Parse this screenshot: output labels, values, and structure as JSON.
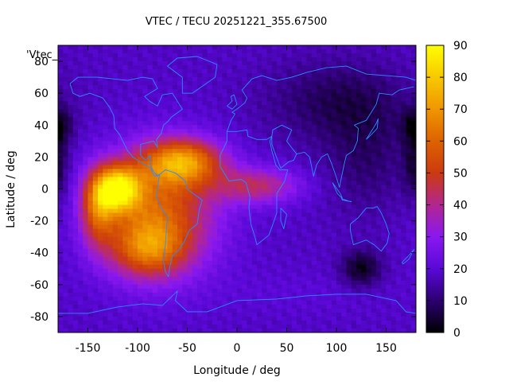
{
  "chart_data": {
    "type": "heatmap",
    "title": "VTEC / TECU 20251221_355.67500",
    "xlabel": "Longitude / deg",
    "ylabel": "Latitude / deg",
    "series_key": "'Vtec_",
    "xlim": [
      -180,
      180
    ],
    "ylim": [
      -90,
      90
    ],
    "x_ticks": [
      -150,
      -100,
      -50,
      0,
      50,
      100,
      150
    ],
    "y_ticks": [
      -80,
      -60,
      -40,
      -20,
      0,
      20,
      40,
      60,
      80
    ],
    "colorbar": {
      "min": 0,
      "max": 90,
      "ticks": [
        0,
        10,
        20,
        30,
        40,
        50,
        60,
        70,
        80,
        90
      ],
      "palette": [
        "#000000",
        "#2c0070",
        "#5a08d8",
        "#8a18f0",
        "#b22690",
        "#cc3a10",
        "#dd6200",
        "#f09600",
        "#f8c800",
        "#ffff00"
      ]
    },
    "grid": {
      "lon_step": 5,
      "lat_step": 2.5
    },
    "background_vtec": 18,
    "features": [
      {
        "region": "equatorial-pacific-peak",
        "lon": -120,
        "lat": 0,
        "vtec": 76,
        "lon_sigma": 16,
        "lat_sigma": 10
      },
      {
        "region": "south-america-core",
        "lon": -80,
        "lat": -15,
        "vtec": 58,
        "lon_sigma": 40,
        "lat_sigma": 26
      },
      {
        "region": "caribbean-north-atlantic",
        "lon": -55,
        "lat": 17,
        "vtec": 63,
        "lon_sigma": 28,
        "lat_sigma": 10
      },
      {
        "region": "southern-crest",
        "lon": -90,
        "lat": -38,
        "vtec": 46,
        "lon_sigma": 26,
        "lat_sigma": 12
      },
      {
        "region": "east-pacific-tail",
        "lon": -140,
        "lat": -12,
        "vtec": 50,
        "lon_sigma": 12,
        "lat_sigma": 16
      },
      {
        "region": "atlantic-tongue",
        "lon": 20,
        "lat": 2,
        "vtec": 42,
        "lon_sigma": 30,
        "lat_sigma": 8
      },
      {
        "region": "south-pacific-trough",
        "lon": 125,
        "lat": -50,
        "vtec": 2,
        "lon_sigma": 14,
        "lat_sigma": 8
      },
      {
        "region": "pacific-minimum",
        "lon": 178,
        "lat": 15,
        "vtec": 6,
        "lon_sigma": 8,
        "lat_sigma": 15
      },
      {
        "region": "asia-pole-low",
        "lon": 100,
        "lat": 55,
        "vtec": 8,
        "lon_sigma": 50,
        "lat_sigma": 18
      },
      {
        "region": "mid-asia-low",
        "lon": 130,
        "lat": 20,
        "vtec": 10,
        "lon_sigma": 30,
        "lat_sigma": 25
      },
      {
        "region": "north-america-low",
        "lon": -180,
        "lat": 40,
        "vtec": 5,
        "lon_sigma": 10,
        "lat_sigma": 8
      },
      {
        "region": "southern-ring",
        "lon": 60,
        "lat": -65,
        "vtec": 20,
        "lon_sigma": 70,
        "lat_sigma": 10
      }
    ]
  }
}
